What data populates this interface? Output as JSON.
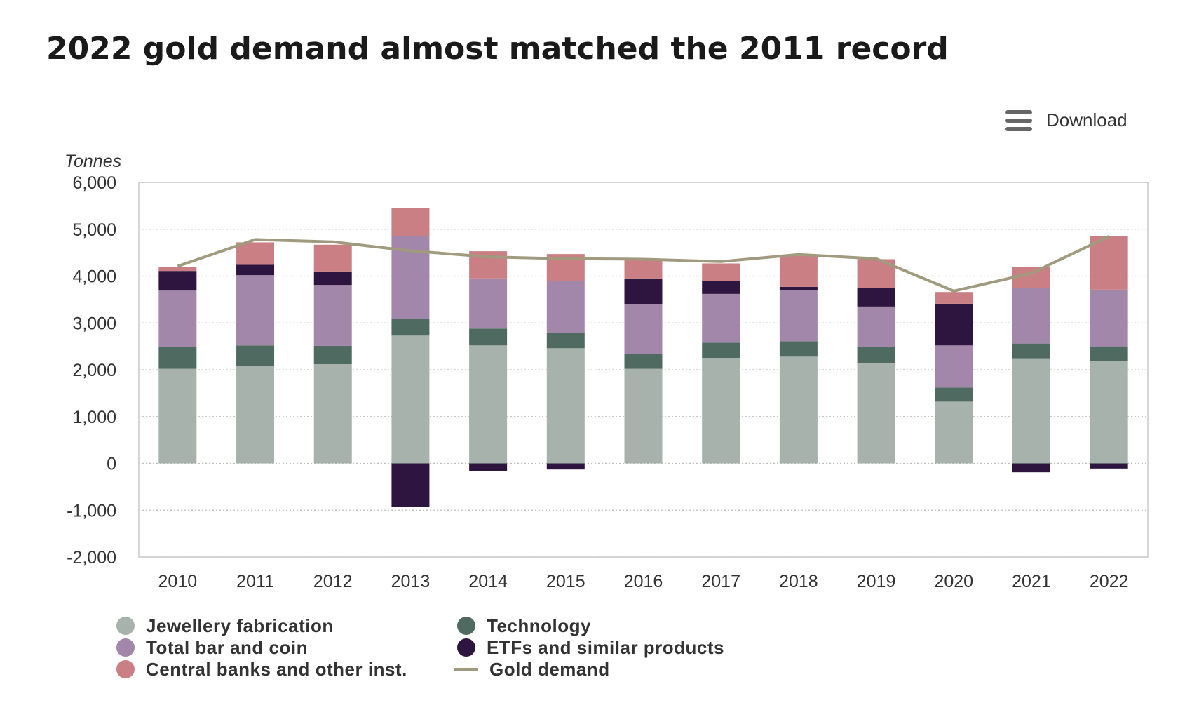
{
  "header": {
    "download_label": "Download",
    "menu_icon": "hamburger-menu-icon"
  },
  "chart_data": {
    "type": "bar",
    "stacked": true,
    "title": "2022 gold demand almost matched the 2011 record",
    "ylabel": "Tonnes",
    "xlabel": "",
    "ylim": [
      -2000,
      6000
    ],
    "yticks": [
      6000,
      5000,
      4000,
      3000,
      2000,
      1000,
      0,
      -1000,
      -2000
    ],
    "ytick_labels": [
      "6,000",
      "5,000",
      "4,000",
      "3,000",
      "2,000",
      "1,000",
      "0",
      "-1,000",
      "-2,000"
    ],
    "grid": true,
    "legend_position": "bottom-left",
    "categories": [
      "2010",
      "2011",
      "2012",
      "2013",
      "2014",
      "2015",
      "2016",
      "2017",
      "2018",
      "2019",
      "2020",
      "2021",
      "2022"
    ],
    "series": [
      {
        "name": "Jewellery fabrication",
        "color": "#a6b2ab",
        "values": [
          2020,
          2090,
          2120,
          2730,
          2520,
          2460,
          2020,
          2250,
          2280,
          2150,
          1320,
          2230,
          2190
        ]
      },
      {
        "name": "Technology",
        "color": "#4f6a60",
        "values": [
          460,
          430,
          390,
          360,
          360,
          330,
          320,
          330,
          330,
          330,
          300,
          330,
          310
        ]
      },
      {
        "name": "Total bar and coin",
        "color": "#a287aa",
        "values": [
          1210,
          1500,
          1300,
          1760,
          1070,
          1100,
          1060,
          1040,
          1090,
          870,
          900,
          1180,
          1210
        ]
      },
      {
        "name": "ETFs and similar products",
        "color": "#2d1540",
        "values": [
          420,
          220,
          290,
          -930,
          -160,
          -130,
          550,
          270,
          70,
          400,
          890,
          -190,
          -110
        ]
      },
      {
        "name": "Central banks and other inst.",
        "color": "#c97f83",
        "values": [
          80,
          480,
          570,
          610,
          580,
          580,
          400,
          380,
          660,
          610,
          250,
          450,
          1140
        ]
      }
    ],
    "line_series": {
      "name": "Gold demand",
      "color": "#a09a7e",
      "values": [
        4210,
        4780,
        4730,
        4540,
        4410,
        4370,
        4360,
        4310,
        4460,
        4370,
        3680,
        4060,
        4850
      ]
    },
    "legend": [
      {
        "name": "Jewellery fabrication",
        "color": "#a6b2ab",
        "shape": "dot"
      },
      {
        "name": "Technology",
        "color": "#4f6a60",
        "shape": "dot"
      },
      {
        "name": "Total bar and coin",
        "color": "#a287aa",
        "shape": "dot"
      },
      {
        "name": "ETFs and similar products",
        "color": "#2d1540",
        "shape": "dot"
      },
      {
        "name": "Central banks and other inst.",
        "color": "#c97f83",
        "shape": "dot"
      },
      {
        "name": "Gold demand",
        "color": "#a09a7e",
        "shape": "line"
      }
    ]
  }
}
